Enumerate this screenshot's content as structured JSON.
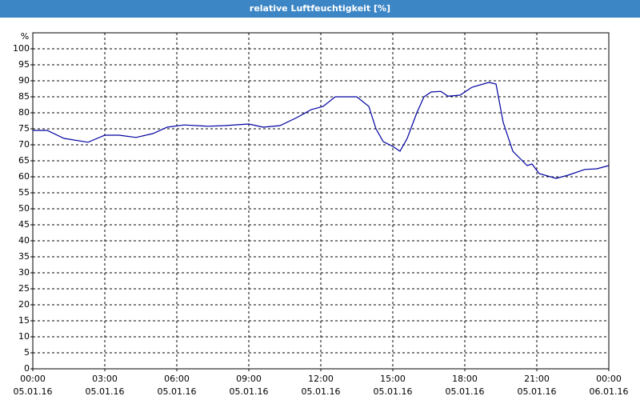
{
  "chart_data": {
    "type": "line",
    "title": "relative Luftfeuchtigkeit [%]",
    "y_unit": "%",
    "xlim": [
      0,
      24
    ],
    "ylim": [
      0,
      105
    ],
    "grid": true,
    "yticks": [
      0,
      5,
      10,
      15,
      20,
      25,
      30,
      35,
      40,
      45,
      50,
      55,
      60,
      65,
      70,
      75,
      80,
      85,
      90,
      95,
      100
    ],
    "xticks": [
      {
        "value": 0,
        "label": "00:00\n05.01.16"
      },
      {
        "value": 3,
        "label": "03:00\n05.01.16"
      },
      {
        "value": 6,
        "label": "06:00\n05.01.16"
      },
      {
        "value": 9,
        "label": "09:00\n05.01.16"
      },
      {
        "value": 12,
        "label": "12:00\n05.01.16"
      },
      {
        "value": 15,
        "label": "15:00\n05.01.16"
      },
      {
        "value": 18,
        "label": "18:00\n05.01.16"
      },
      {
        "value": 21,
        "label": "21:00\n05.01.16"
      },
      {
        "value": 24,
        "label": "00:00\n06.01.16"
      }
    ],
    "series": [
      {
        "color": "#0000a0",
        "x": [
          0,
          0.6,
          1.3,
          2.3,
          3,
          3.6,
          4.3,
          5,
          5.6,
          6.3,
          7.3,
          8,
          9,
          9.6,
          10.3,
          11,
          11.6,
          12.1,
          12.6,
          13.5,
          14,
          14.3,
          14.6,
          15,
          15.3,
          15.6,
          16,
          16.3,
          16.6,
          17,
          17.3,
          17.8,
          18.3,
          19,
          19.3,
          19.6,
          20,
          20.6,
          20.8,
          21.1,
          21.8,
          22.3,
          23,
          23.5,
          24
        ],
        "values": [
          74.5,
          74.5,
          72,
          70.8,
          73,
          73,
          72.3,
          73.5,
          75.5,
          76.2,
          75.8,
          76,
          76.5,
          75.5,
          76,
          78.5,
          81,
          82,
          85,
          85,
          82,
          75,
          71,
          69.5,
          68,
          72,
          80,
          85,
          86.5,
          86.7,
          85.2,
          85.5,
          88,
          89.5,
          89,
          77,
          68,
          63.5,
          64,
          61,
          59.5,
          60.5,
          62.3,
          62.5,
          63.5
        ]
      }
    ]
  }
}
